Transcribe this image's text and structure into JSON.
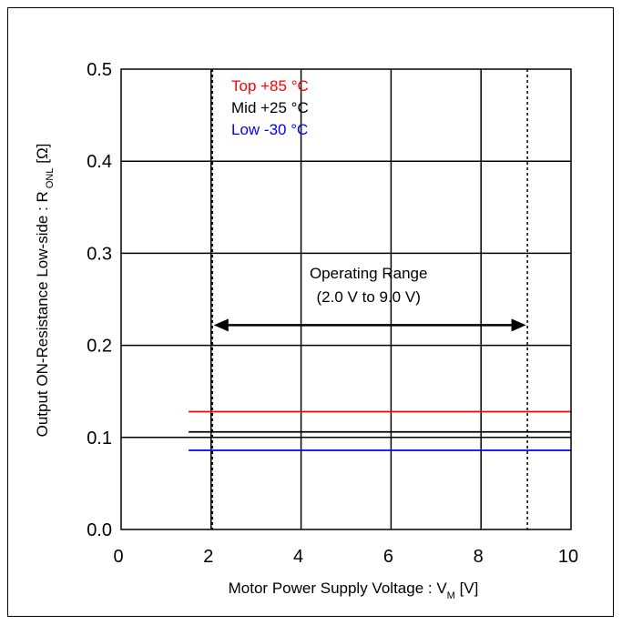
{
  "chart_data": {
    "type": "line",
    "xlabel": "Motor Power Supply Voltage : V",
    "xlabel_sub": "M",
    "xlabel_unit": " [V]",
    "ylabel": "Output ON-Resistance Low-side : R",
    "ylabel_sub": "ONL",
    "ylabel_unit": " [Ω]",
    "xlim": [
      0,
      10
    ],
    "ylim": [
      0.0,
      0.5
    ],
    "x_ticks": [
      0,
      2,
      4,
      6,
      8,
      10
    ],
    "x_tick_labels": [
      "0",
      "2",
      "4",
      "6",
      "8",
      "10"
    ],
    "y_ticks": [
      0.0,
      0.1,
      0.2,
      0.3,
      0.4,
      0.5
    ],
    "y_tick_labels": [
      "0.0",
      "0.1",
      "0.2",
      "0.3",
      "0.4",
      "0.5"
    ],
    "grid": true,
    "legend_position": "top-left",
    "series": [
      {
        "name": "Top +85 °C",
        "color": "#ff0000",
        "x": [
          1.5,
          10.0
        ],
        "y": [
          0.128,
          0.128
        ]
      },
      {
        "name": "Mid +25 °C",
        "color": "#000000",
        "x": [
          1.5,
          10.0
        ],
        "y": [
          0.106,
          0.106
        ]
      },
      {
        "name": "Low -30 °C",
        "color": "#0000ff",
        "x": [
          1.5,
          10.0
        ],
        "y": [
          0.086,
          0.086
        ]
      }
    ],
    "operating_range": {
      "label_line1": "Operating Range",
      "label_line2": "(2.0 V to 9.0 V)",
      "x_start": 2.0,
      "x_end": 9.0,
      "arrow_y": 0.222
    }
  }
}
